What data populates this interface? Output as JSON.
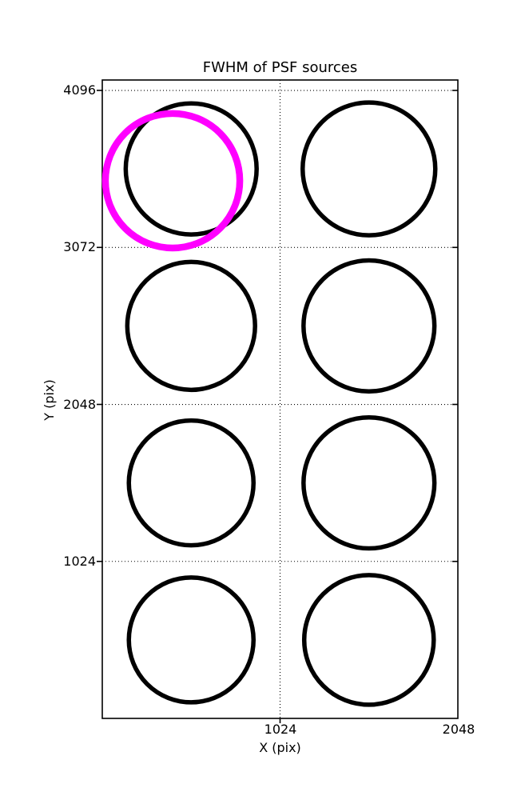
{
  "figure": {
    "background": "#ffffff",
    "axis_color": "#000000"
  },
  "chart_data": {
    "type": "scatter",
    "title": "FWHM of PSF sources",
    "xlabel": "X (pix)",
    "ylabel": "Y (pix)",
    "xlim": [
      0,
      2048
    ],
    "ylim": [
      0,
      4164
    ],
    "xticks": [
      1024,
      2048
    ],
    "yticks": [
      4096,
      3072,
      2048,
      1024
    ],
    "xtick_labels": [
      "1024",
      "2048"
    ],
    "ytick_labels": [
      "4096",
      "3072",
      "2048",
      "1024"
    ],
    "xgrid": [
      1024
    ],
    "ygrid": [
      4096,
      3072,
      2048,
      1024
    ],
    "grid_style": "dotted",
    "legend": false,
    "description": "Circle markers sized by PSF FWHM at eight detector quadrant centers; one magenta highlighted source near the top-left quadrant",
    "circles": [
      {
        "name": "psf-circle",
        "x": 512,
        "y": 3584,
        "r": 377,
        "color": "#000000",
        "stroke_px": 5.5
      },
      {
        "name": "psf-circle",
        "x": 1536,
        "y": 3584,
        "r": 382,
        "color": "#000000",
        "stroke_px": 5.5
      },
      {
        "name": "psf-circle",
        "x": 512,
        "y": 2560,
        "r": 368,
        "color": "#000000",
        "stroke_px": 5.5
      },
      {
        "name": "psf-circle",
        "x": 1536,
        "y": 2560,
        "r": 377,
        "color": "#000000",
        "stroke_px": 5.5
      },
      {
        "name": "psf-circle",
        "x": 512,
        "y": 1536,
        "r": 359,
        "color": "#000000",
        "stroke_px": 5.5
      },
      {
        "name": "psf-circle",
        "x": 1536,
        "y": 1536,
        "r": 377,
        "color": "#000000",
        "stroke_px": 5.5
      },
      {
        "name": "psf-circle",
        "x": 512,
        "y": 512,
        "r": 359,
        "color": "#000000",
        "stroke_px": 5.5
      },
      {
        "name": "psf-circle",
        "x": 1536,
        "y": 512,
        "r": 373,
        "color": "#000000",
        "stroke_px": 5.5
      },
      {
        "name": "highlight-circle",
        "x": 405,
        "y": 3507,
        "r": 387,
        "color": "#ff00ff",
        "stroke_px": 8.5
      }
    ],
    "highlight_color": "#ff00ff"
  }
}
